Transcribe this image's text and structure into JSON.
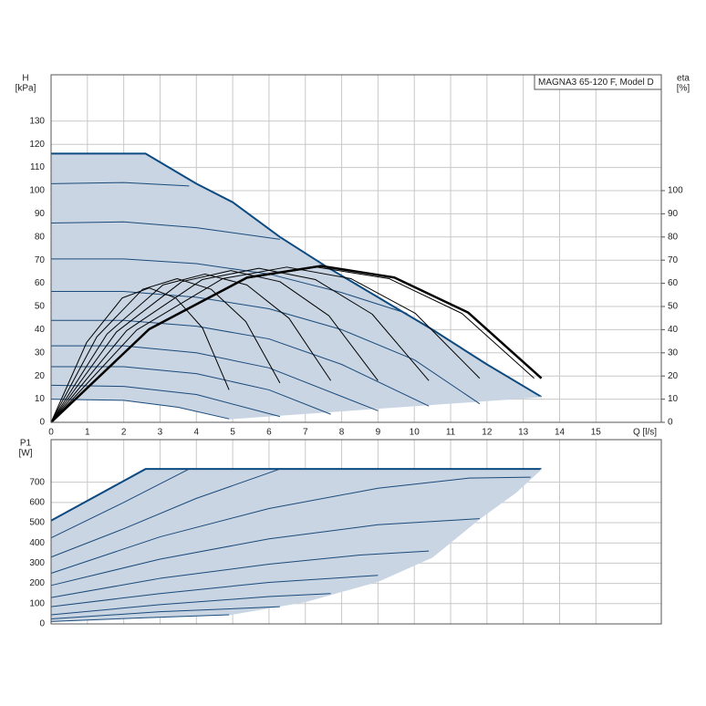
{
  "chart_data": [
    {
      "type": "line",
      "title": "MAGNA3 65-120 F, Model D",
      "y_label": [
        "H",
        "[kPa]"
      ],
      "y2_label": [
        "eta",
        "[%]"
      ],
      "x_label": "Q [l/s]",
      "xlim": [
        0,
        16.8
      ],
      "ylim": [
        0,
        150
      ],
      "y2lim": [
        0,
        150
      ],
      "xticks": [
        0,
        1,
        2,
        3,
        4,
        5,
        6,
        7,
        8,
        9,
        10,
        11,
        12,
        13,
        14,
        15
      ],
      "yticks": [
        0,
        10,
        20,
        30,
        40,
        50,
        60,
        70,
        80,
        90,
        100,
        110,
        120,
        130
      ],
      "y2ticks": [
        0,
        10,
        20,
        30,
        40,
        50,
        60,
        70,
        80,
        90,
        100
      ],
      "grid": true,
      "fill_color": "#c9d5e3",
      "series": [
        {
          "color": "#0d4a80",
          "width": 2,
          "x": [
            0,
            2.6,
            4,
            5,
            6.3,
            7.6,
            9,
            10.5,
            12,
            13.5
          ],
          "values": [
            116,
            116,
            103,
            95,
            80,
            67,
            54,
            40,
            25,
            11
          ]
        },
        {
          "color": "#c9d5e3",
          "width": 1,
          "x": [
            4.9,
            13.5
          ],
          "values": [
            1.5,
            11
          ]
        },
        {
          "color": "#1a4a7a",
          "width": 1,
          "x": [
            0,
            2,
            3.5,
            4.9
          ],
          "values": [
            10,
            9.5,
            6.5,
            1.5
          ]
        },
        {
          "color": "#1a4a7a",
          "width": 1,
          "x": [
            0,
            2,
            4,
            6.3
          ],
          "values": [
            16,
            15.5,
            12,
            2.5
          ]
        },
        {
          "color": "#1a4a7a",
          "width": 1,
          "x": [
            0,
            2,
            4,
            6,
            7.7
          ],
          "values": [
            24,
            24,
            21,
            14,
            3.5
          ]
        },
        {
          "color": "#1a4a7a",
          "width": 1,
          "x": [
            0,
            2,
            4,
            6,
            9
          ],
          "values": [
            33,
            33,
            30,
            23.5,
            5
          ]
        },
        {
          "color": "#1a4a7a",
          "width": 1,
          "x": [
            0,
            2,
            4,
            6,
            8,
            10.4
          ],
          "values": [
            44,
            44,
            41.5,
            36,
            25,
            7
          ]
        },
        {
          "color": "#1a4a7a",
          "width": 1,
          "x": [
            0,
            2,
            4,
            6,
            8,
            10,
            11.8
          ],
          "values": [
            56.5,
            56.5,
            54,
            49,
            40,
            27,
            8
          ]
        },
        {
          "color": "#1a4a7a",
          "width": 1,
          "x": [
            0,
            2,
            4,
            6,
            8,
            9.8
          ],
          "values": [
            70.5,
            70.5,
            68.5,
            64,
            56,
            47
          ]
        },
        {
          "color": "#1a4a7a",
          "width": 1,
          "x": [
            0,
            2,
            4,
            6.3
          ],
          "values": [
            86,
            86.5,
            84,
            79
          ]
        },
        {
          "color": "#1a4a7a",
          "width": 1,
          "x": [
            0,
            2,
            3.8
          ],
          "values": [
            103,
            103.5,
            102
          ]
        },
        {
          "color": "#000000",
          "width": 1,
          "axis": "y2",
          "x": [
            0,
            0.98,
            1.96,
            2.7,
            3.43,
            4.17,
            4.9
          ],
          "values": [
            0,
            34.5,
            53.7,
            58,
            53.7,
            40.7,
            14
          ]
        },
        {
          "color": "#000000",
          "width": 1,
          "axis": "y2",
          "x": [
            0,
            1.26,
            2.52,
            3.47,
            4.41,
            5.36,
            6.3
          ],
          "values": [
            0,
            36.9,
            57.4,
            62,
            57.4,
            43.5,
            17
          ]
        },
        {
          "color": "#000000",
          "width": 1,
          "axis": "y2",
          "x": [
            0,
            1.54,
            3.08,
            4.24,
            5.39,
            6.55,
            7.7
          ],
          "values": [
            0,
            38.1,
            59.3,
            64,
            59.3,
            44.9,
            18
          ]
        },
        {
          "color": "#000000",
          "width": 1,
          "axis": "y2",
          "x": [
            0,
            1.8,
            3.6,
            4.95,
            6.3,
            7.65,
            9
          ],
          "values": [
            0,
            39,
            60.7,
            65.5,
            60.7,
            46,
            18
          ]
        },
        {
          "color": "#000000",
          "width": 1,
          "axis": "y2",
          "x": [
            0,
            2.08,
            4.16,
            5.72,
            7.28,
            8.84,
            10.4
          ],
          "values": [
            0,
            39.6,
            61.6,
            66.5,
            61.6,
            46.7,
            18
          ]
        },
        {
          "color": "#000000",
          "width": 1,
          "axis": "y2",
          "x": [
            0,
            2.36,
            4.72,
            6.49,
            8.26,
            10.03,
            11.8
          ],
          "values": [
            0,
            39.9,
            62,
            67,
            62,
            47,
            19
          ]
        },
        {
          "color": "#000000",
          "width": 1,
          "axis": "y2",
          "x": [
            0,
            2.66,
            5.32,
            7.32,
            9.31,
            11.31,
            13.3
          ],
          "values": [
            0,
            39.9,
            62,
            67,
            62,
            47,
            19
          ]
        },
        {
          "color": "#000000",
          "width": 2.5,
          "axis": "y2",
          "x": [
            0,
            2.7,
            5.4,
            7.43,
            9.45,
            11.48,
            13.5
          ],
          "values": [
            0,
            40.2,
            62.5,
            67.5,
            62.5,
            47.4,
            19
          ]
        }
      ]
    },
    {
      "type": "line",
      "y_label": [
        "P1",
        "[W]"
      ],
      "xlim": [
        0,
        16.8
      ],
      "ylim": [
        0,
        910
      ],
      "yticks": [
        0,
        100,
        200,
        300,
        400,
        500,
        600,
        700
      ],
      "grid": true,
      "fill_color": "#c9d5e3",
      "series": [
        {
          "color": "#0d4a80",
          "width": 2,
          "x": [
            0,
            2.6,
            13.5
          ],
          "values": [
            510,
            765,
            765
          ]
        },
        {
          "color": "#c9d5e3",
          "width": 1,
          "x": [
            4.9,
            7,
            9,
            10.5,
            11.8,
            12.8,
            13.5
          ],
          "values": [
            45,
            110,
            210,
            330,
            520,
            650,
            765
          ]
        },
        {
          "color": "#1a4a7a",
          "width": 1,
          "x": [
            0,
            2.5,
            4.9
          ],
          "values": [
            12,
            30,
            45
          ]
        },
        {
          "color": "#1a4a7a",
          "width": 1,
          "x": [
            0,
            3,
            6.3
          ],
          "values": [
            25,
            60,
            85
          ]
        },
        {
          "color": "#1a4a7a",
          "width": 1,
          "x": [
            0,
            3,
            6,
            7.7
          ],
          "values": [
            45,
            95,
            135,
            150
          ]
        },
        {
          "color": "#1a4a7a",
          "width": 1,
          "x": [
            0,
            3,
            6,
            9
          ],
          "values": [
            85,
            150,
            205,
            240
          ]
        },
        {
          "color": "#1a4a7a",
          "width": 1,
          "x": [
            0,
            3,
            6,
            8.5,
            10.4
          ],
          "values": [
            130,
            225,
            295,
            340,
            360
          ]
        },
        {
          "color": "#1a4a7a",
          "width": 1,
          "x": [
            0,
            3,
            6,
            9,
            11.8
          ],
          "values": [
            190,
            320,
            420,
            490,
            520
          ]
        },
        {
          "color": "#1a4a7a",
          "width": 1,
          "x": [
            0,
            3,
            6,
            9,
            11.5,
            13.2
          ],
          "values": [
            250,
            430,
            570,
            670,
            720,
            725
          ]
        },
        {
          "color": "#1a4a7a",
          "width": 1,
          "x": [
            0,
            2,
            4,
            6.3
          ],
          "values": [
            330,
            470,
            620,
            765
          ]
        },
        {
          "color": "#1a4a7a",
          "width": 1,
          "x": [
            0,
            2,
            3.8
          ],
          "values": [
            425,
            600,
            765
          ]
        }
      ]
    }
  ]
}
